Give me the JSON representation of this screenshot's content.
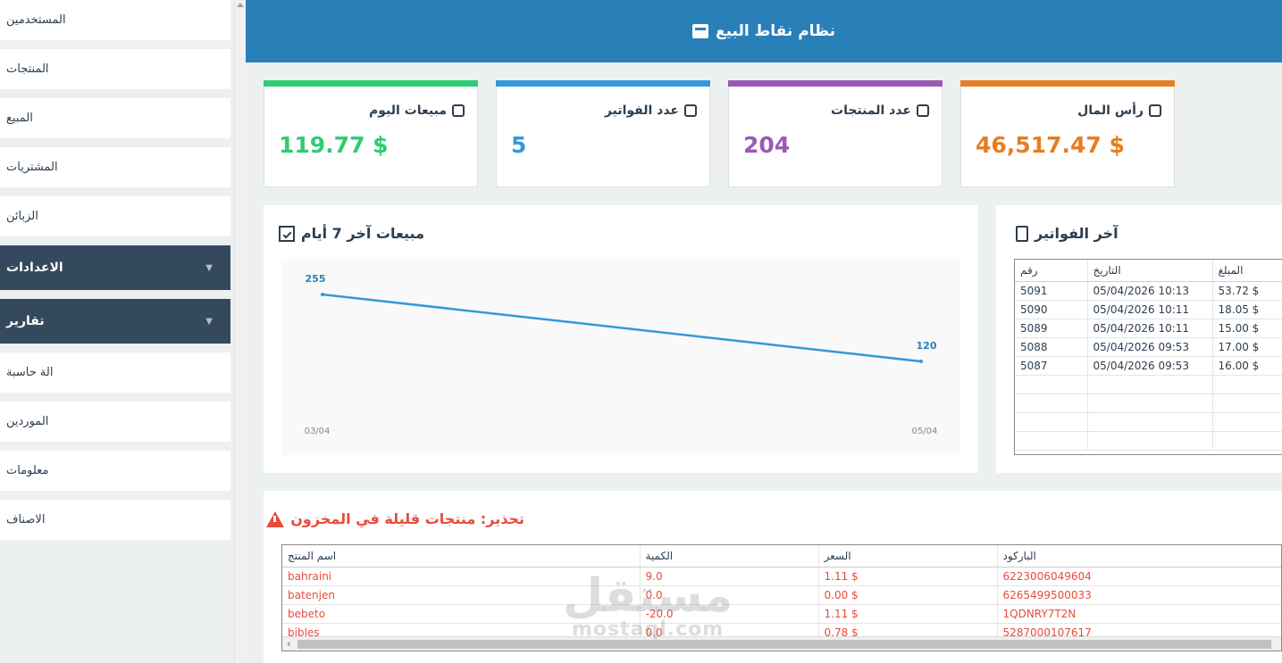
{
  "sidebar": {
    "items": [
      {
        "label": "المستخدمين"
      },
      {
        "label": "المنتجات"
      },
      {
        "label": "المبيع"
      },
      {
        "label": "المشتريات"
      },
      {
        "label": "الزبائن"
      }
    ],
    "groups": [
      {
        "label": "الاعدادات"
      },
      {
        "label": "تقارير"
      }
    ],
    "items2": [
      {
        "label": "الة حاسبة"
      },
      {
        "label": "الموردين"
      },
      {
        "label": "معلومات"
      },
      {
        "label": "الاصناف"
      }
    ]
  },
  "header": {
    "title": "نظام نقاط البيع"
  },
  "stats": [
    {
      "title": "مبيعات اليوم",
      "value": "119.77 $",
      "color": "#2ecc71"
    },
    {
      "title": "عدد الفواتير",
      "value": "5",
      "color": "#3498db"
    },
    {
      "title": "عدد المنتجات",
      "value": "204",
      "color": "#9b59b6"
    },
    {
      "title": "رأس المال",
      "value": "46,517.47 $",
      "color": "#e67e22"
    }
  ],
  "chart_data": {
    "type": "line",
    "title": "مبيعات آخر 7 أيام",
    "categories": [
      "03/04",
      "05/04"
    ],
    "values": [
      255,
      120
    ],
    "data_labels": [
      "255",
      "120"
    ],
    "line_color": "#3498db"
  },
  "invoices": {
    "title": "آخر الفواتير",
    "headers": [
      "رقم",
      "التاريخ",
      "المبلغ"
    ],
    "rows": [
      [
        "5091",
        "05/04/2026 10:13",
        "53.72 $"
      ],
      [
        "5090",
        "05/04/2026 10:11",
        "18.05 $"
      ],
      [
        "5089",
        "05/04/2026 10:11",
        "15.00 $"
      ],
      [
        "5088",
        "05/04/2026 09:53",
        "17.00 $"
      ],
      [
        "5087",
        "05/04/2026 09:53",
        "16.00 $"
      ]
    ]
  },
  "low_stock": {
    "title": "تحذير: منتجات قليلة في المخزون",
    "headers": [
      "اسم المنتج",
      "الكمية",
      "السعر",
      "الباركود"
    ],
    "rows": [
      [
        "bahraini",
        "9.0",
        "1.11 $",
        "6223006049604"
      ],
      [
        "batenjen",
        "0.0",
        "0.00 $",
        "6265499500033"
      ],
      [
        "bebeto",
        "-20.0",
        "1.11 $",
        "1QDNRY7T2N"
      ],
      [
        "bibles",
        "0.0",
        "0.78 $",
        "5287000107617"
      ]
    ]
  },
  "watermark": {
    "line1": "مستقل",
    "line2": "mostaql.com"
  }
}
